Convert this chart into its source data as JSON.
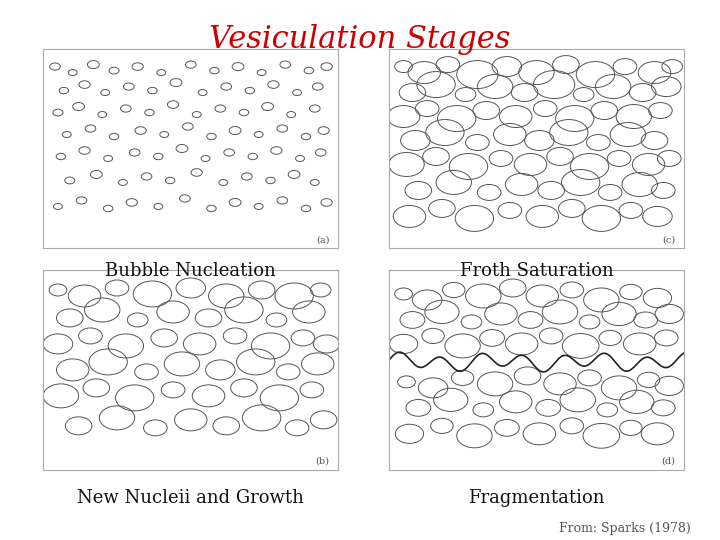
{
  "title": "Vesiculation Stages",
  "title_color": "#cc0000",
  "title_fontsize": 22,
  "bg_color": "#ffffff",
  "panel_bg": "#ffffff",
  "labels": [
    "Bubble Nucleation",
    "Froth Saturation",
    "New Nucleii and Growth",
    "Fragmentation"
  ],
  "label_fontsize": 13,
  "citation": "From: Sparks (1978)",
  "citation_fontsize": 9,
  "panel_labels_order": [
    "(a)",
    "(c)",
    "(b)",
    "(d)"
  ],
  "nucleation_bubbles": {
    "x": [
      0.04,
      0.1,
      0.17,
      0.24,
      0.32,
      0.4,
      0.5,
      0.58,
      0.66,
      0.74,
      0.82,
      0.9,
      0.96,
      0.07,
      0.14,
      0.21,
      0.29,
      0.37,
      0.45,
      0.54,
      0.62,
      0.7,
      0.78,
      0.86,
      0.93,
      0.05,
      0.12,
      0.2,
      0.28,
      0.36,
      0.44,
      0.52,
      0.6,
      0.68,
      0.76,
      0.84,
      0.92,
      0.08,
      0.16,
      0.24,
      0.33,
      0.41,
      0.49,
      0.57,
      0.65,
      0.73,
      0.81,
      0.89,
      0.95,
      0.06,
      0.14,
      0.22,
      0.31,
      0.39,
      0.47,
      0.55,
      0.63,
      0.71,
      0.79,
      0.87,
      0.94,
      0.09,
      0.18,
      0.27,
      0.35,
      0.43,
      0.52,
      0.61,
      0.69,
      0.77,
      0.85,
      0.92,
      0.05,
      0.13,
      0.22,
      0.3,
      0.39,
      0.48,
      0.57,
      0.65,
      0.73,
      0.81,
      0.89,
      0.96
    ],
    "y": [
      0.91,
      0.88,
      0.92,
      0.89,
      0.91,
      0.88,
      0.92,
      0.89,
      0.91,
      0.88,
      0.92,
      0.89,
      0.91,
      0.79,
      0.82,
      0.78,
      0.81,
      0.79,
      0.83,
      0.78,
      0.81,
      0.79,
      0.82,
      0.78,
      0.81,
      0.68,
      0.71,
      0.67,
      0.7,
      0.68,
      0.72,
      0.67,
      0.7,
      0.68,
      0.71,
      0.67,
      0.7,
      0.57,
      0.6,
      0.56,
      0.59,
      0.57,
      0.61,
      0.56,
      0.59,
      0.57,
      0.6,
      0.56,
      0.59,
      0.46,
      0.49,
      0.45,
      0.48,
      0.46,
      0.5,
      0.45,
      0.48,
      0.46,
      0.49,
      0.45,
      0.48,
      0.34,
      0.37,
      0.33,
      0.36,
      0.34,
      0.38,
      0.33,
      0.36,
      0.34,
      0.37,
      0.33,
      0.21,
      0.24,
      0.2,
      0.23,
      0.21,
      0.25,
      0.2,
      0.23,
      0.21,
      0.24,
      0.2,
      0.23
    ],
    "r": [
      0.018,
      0.015,
      0.02,
      0.017,
      0.019,
      0.015,
      0.018,
      0.016,
      0.02,
      0.015,
      0.018,
      0.016,
      0.019,
      0.016,
      0.019,
      0.015,
      0.018,
      0.016,
      0.02,
      0.015,
      0.018,
      0.016,
      0.019,
      0.015,
      0.018,
      0.017,
      0.02,
      0.015,
      0.018,
      0.016,
      0.019,
      0.015,
      0.018,
      0.016,
      0.02,
      0.015,
      0.018,
      0.015,
      0.018,
      0.016,
      0.019,
      0.015,
      0.018,
      0.016,
      0.02,
      0.015,
      0.018,
      0.016,
      0.019,
      0.016,
      0.019,
      0.015,
      0.018,
      0.016,
      0.02,
      0.015,
      0.018,
      0.016,
      0.019,
      0.015,
      0.018,
      0.017,
      0.02,
      0.015,
      0.018,
      0.016,
      0.019,
      0.015,
      0.018,
      0.016,
      0.02,
      0.015,
      0.015,
      0.018,
      0.016,
      0.019,
      0.015,
      0.018,
      0.016,
      0.02,
      0.015,
      0.018,
      0.016,
      0.019
    ]
  },
  "froth_bubbles": {
    "x": [
      0.05,
      0.12,
      0.2,
      0.3,
      0.4,
      0.5,
      0.6,
      0.7,
      0.8,
      0.9,
      0.96,
      0.08,
      0.16,
      0.26,
      0.36,
      0.46,
      0.56,
      0.66,
      0.76,
      0.86,
      0.94,
      0.05,
      0.13,
      0.23,
      0.33,
      0.43,
      0.53,
      0.63,
      0.73,
      0.83,
      0.92,
      0.09,
      0.19,
      0.3,
      0.41,
      0.51,
      0.61,
      0.71,
      0.81,
      0.9,
      0.06,
      0.16,
      0.27,
      0.38,
      0.48,
      0.58,
      0.68,
      0.78,
      0.88,
      0.95,
      0.1,
      0.22,
      0.34,
      0.45,
      0.55,
      0.65,
      0.75,
      0.85,
      0.93,
      0.07,
      0.18,
      0.29,
      0.41,
      0.52,
      0.62,
      0.72,
      0.82,
      0.91
    ],
    "y": [
      0.91,
      0.88,
      0.92,
      0.87,
      0.91,
      0.88,
      0.92,
      0.87,
      0.91,
      0.88,
      0.91,
      0.78,
      0.82,
      0.77,
      0.81,
      0.78,
      0.82,
      0.77,
      0.81,
      0.78,
      0.81,
      0.66,
      0.7,
      0.65,
      0.69,
      0.66,
      0.7,
      0.65,
      0.69,
      0.66,
      0.69,
      0.54,
      0.58,
      0.53,
      0.57,
      0.54,
      0.58,
      0.53,
      0.57,
      0.54,
      0.42,
      0.46,
      0.41,
      0.45,
      0.42,
      0.46,
      0.41,
      0.45,
      0.42,
      0.45,
      0.29,
      0.33,
      0.28,
      0.32,
      0.29,
      0.33,
      0.28,
      0.32,
      0.29,
      0.16,
      0.2,
      0.15,
      0.19,
      0.16,
      0.2,
      0.15,
      0.19,
      0.16
    ],
    "r": [
      0.03,
      0.055,
      0.04,
      0.07,
      0.05,
      0.06,
      0.045,
      0.065,
      0.04,
      0.055,
      0.035,
      0.045,
      0.065,
      0.035,
      0.06,
      0.045,
      0.07,
      0.035,
      0.06,
      0.045,
      0.05,
      0.055,
      0.04,
      0.065,
      0.045,
      0.055,
      0.04,
      0.065,
      0.045,
      0.06,
      0.04,
      0.05,
      0.065,
      0.04,
      0.055,
      0.05,
      0.065,
      0.04,
      0.06,
      0.045,
      0.06,
      0.045,
      0.065,
      0.04,
      0.055,
      0.045,
      0.065,
      0.04,
      0.055,
      0.04,
      0.045,
      0.06,
      0.04,
      0.055,
      0.045,
      0.065,
      0.04,
      0.06,
      0.04,
      0.055,
      0.045,
      0.065,
      0.04,
      0.055,
      0.045,
      0.065,
      0.04,
      0.05
    ]
  },
  "growth_bubbles": {
    "x": [
      0.05,
      0.14,
      0.25,
      0.37,
      0.5,
      0.62,
      0.74,
      0.85,
      0.94,
      0.09,
      0.2,
      0.32,
      0.44,
      0.56,
      0.68,
      0.79,
      0.9,
      0.05,
      0.16,
      0.28,
      0.41,
      0.53,
      0.65,
      0.77,
      0.88,
      0.96,
      0.1,
      0.22,
      0.35,
      0.47,
      0.6,
      0.72,
      0.83,
      0.93,
      0.06,
      0.18,
      0.31,
      0.44,
      0.56,
      0.68,
      0.8,
      0.91,
      0.12,
      0.25,
      0.38,
      0.5,
      0.62,
      0.74,
      0.86,
      0.95
    ],
    "y": [
      0.9,
      0.87,
      0.91,
      0.88,
      0.91,
      0.87,
      0.9,
      0.87,
      0.9,
      0.76,
      0.8,
      0.75,
      0.79,
      0.76,
      0.8,
      0.75,
      0.79,
      0.63,
      0.67,
      0.62,
      0.66,
      0.63,
      0.67,
      0.62,
      0.66,
      0.63,
      0.5,
      0.54,
      0.49,
      0.53,
      0.5,
      0.54,
      0.49,
      0.53,
      0.37,
      0.41,
      0.36,
      0.4,
      0.37,
      0.41,
      0.36,
      0.4,
      0.22,
      0.26,
      0.21,
      0.25,
      0.22,
      0.26,
      0.21,
      0.25
    ],
    "r": [
      0.03,
      0.055,
      0.04,
      0.065,
      0.05,
      0.06,
      0.045,
      0.065,
      0.035,
      0.045,
      0.06,
      0.035,
      0.055,
      0.045,
      0.065,
      0.035,
      0.055,
      0.05,
      0.04,
      0.06,
      0.045,
      0.055,
      0.04,
      0.065,
      0.04,
      0.045,
      0.055,
      0.065,
      0.04,
      0.06,
      0.05,
      0.065,
      0.04,
      0.055,
      0.06,
      0.045,
      0.065,
      0.04,
      0.055,
      0.045,
      0.065,
      0.04,
      0.045,
      0.06,
      0.04,
      0.055,
      0.045,
      0.065,
      0.04,
      0.045
    ]
  },
  "frag_bubbles_top": {
    "x": [
      0.05,
      0.13,
      0.22,
      0.32,
      0.42,
      0.52,
      0.62,
      0.72,
      0.82,
      0.91,
      0.08,
      0.18,
      0.28,
      0.38,
      0.48,
      0.58,
      0.68,
      0.78,
      0.87,
      0.95,
      0.05,
      0.15,
      0.25,
      0.35,
      0.45,
      0.55,
      0.65,
      0.75,
      0.85,
      0.94
    ],
    "y": [
      0.88,
      0.85,
      0.9,
      0.87,
      0.91,
      0.87,
      0.9,
      0.85,
      0.89,
      0.86,
      0.75,
      0.79,
      0.74,
      0.78,
      0.75,
      0.79,
      0.74,
      0.78,
      0.75,
      0.78,
      0.63,
      0.67,
      0.62,
      0.66,
      0.63,
      0.67,
      0.62,
      0.66,
      0.63,
      0.66
    ],
    "r": [
      0.03,
      0.05,
      0.038,
      0.06,
      0.045,
      0.055,
      0.04,
      0.06,
      0.038,
      0.048,
      0.042,
      0.058,
      0.035,
      0.055,
      0.042,
      0.06,
      0.035,
      0.058,
      0.04,
      0.048,
      0.048,
      0.038,
      0.06,
      0.042,
      0.055,
      0.04,
      0.062,
      0.038,
      0.055,
      0.04
    ]
  },
  "frag_bubbles_bottom": {
    "x": [
      0.06,
      0.15,
      0.25,
      0.36,
      0.47,
      0.58,
      0.68,
      0.78,
      0.88,
      0.95,
      0.1,
      0.21,
      0.32,
      0.43,
      0.54,
      0.64,
      0.74,
      0.84,
      0.93,
      0.07,
      0.18,
      0.29,
      0.4,
      0.51,
      0.62,
      0.72,
      0.82,
      0.91
    ],
    "y": [
      0.44,
      0.41,
      0.46,
      0.43,
      0.47,
      0.43,
      0.46,
      0.41,
      0.45,
      0.42,
      0.31,
      0.35,
      0.3,
      0.34,
      0.31,
      0.35,
      0.3,
      0.34,
      0.31,
      0.18,
      0.22,
      0.17,
      0.21,
      0.18,
      0.22,
      0.17,
      0.21,
      0.18
    ],
    "r": [
      0.03,
      0.05,
      0.038,
      0.06,
      0.045,
      0.055,
      0.04,
      0.06,
      0.038,
      0.048,
      0.042,
      0.058,
      0.035,
      0.055,
      0.042,
      0.06,
      0.035,
      0.058,
      0.04,
      0.048,
      0.038,
      0.06,
      0.042,
      0.055,
      0.04,
      0.062,
      0.038,
      0.055
    ]
  }
}
